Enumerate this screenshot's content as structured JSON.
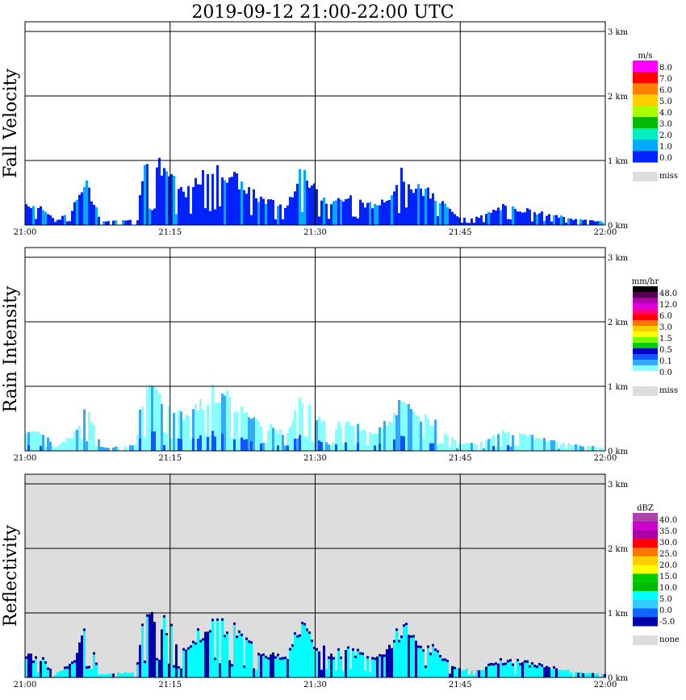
{
  "title": "2019-09-12   21:00-22:00 UTC",
  "chart_data": [
    {
      "type": "heatmap",
      "ylabel": "Fall Velocity",
      "x_ticks": [
        "21:00",
        "21:15",
        "21:30",
        "21:45",
        "22:00"
      ],
      "y_ticks": [
        "0 km",
        "1 km",
        "2 km",
        "3 km"
      ],
      "ylim_km": [
        0,
        3
      ],
      "grid": true,
      "background": "#ffffff",
      "legend": {
        "unit": "m/s",
        "labels": [
          "8.0",
          "7.0",
          "6.0",
          "5.0",
          "4.0",
          "3.0",
          "2.0",
          "1.0",
          "0.0"
        ],
        "colors": [
          "#ff00ff",
          "#ff0000",
          "#ff7f00",
          "#ffcc00",
          "#aaff00",
          "#00bb00",
          "#00eebb",
          "#00aaff",
          "#0022ff"
        ],
        "missing_label": "miss",
        "missing_color": "#dddddd"
      },
      "cloud": {
        "top_km": 1.0,
        "dominant_color": "#0022ff",
        "secondary_color": "#00aaff"
      }
    },
    {
      "type": "heatmap",
      "ylabel": "Rain Intensity",
      "x_ticks": [
        "21:00",
        "21:15",
        "21:30",
        "21:45",
        "22:00"
      ],
      "y_ticks": [
        "0 km",
        "1 km",
        "2 km",
        "3 km"
      ],
      "ylim_km": [
        0,
        3
      ],
      "grid": true,
      "background": "#ffffff",
      "legend": {
        "unit": "mm/hr",
        "labels": [
          "48.0",
          "12.0",
          "6.0",
          "3.0",
          "1.5",
          "0.5",
          "0.1",
          "0.0"
        ],
        "colors": [
          "#000000",
          "#550055",
          "#aa00aa",
          "#dd00dd",
          "#ff0077",
          "#ff0000",
          "#ff7700",
          "#ffcc00",
          "#ffff00",
          "#77ff00",
          "#00cc00",
          "#0000cc",
          "#1155ff",
          "#33aaff",
          "#88ffff",
          "#ffffff"
        ],
        "missing_label": "miss",
        "missing_color": "#dddddd"
      },
      "cloud": {
        "top_km": 1.0,
        "dominant_color": "#88ffff",
        "secondary_color": "#33aaff"
      }
    },
    {
      "type": "heatmap",
      "ylabel": "Reflectivity",
      "x_ticks": [
        "21:00",
        "21:15",
        "21:30",
        "21:45",
        "22:00"
      ],
      "y_ticks": [
        "0 km",
        "1 km",
        "2 km",
        "3 km"
      ],
      "ylim_km": [
        0,
        3
      ],
      "grid": true,
      "background": "#dddddd",
      "legend": {
        "unit": "dBZ",
        "labels": [
          "40.0",
          "35.0",
          "30.0",
          "25.0",
          "20.0",
          "15.0",
          "10.0",
          "5.0",
          "0.0",
          "-5.0"
        ],
        "colors": [
          "#aa44aa",
          "#cc00cc",
          "#aa00aa",
          "#ff0000",
          "#ff7700",
          "#ffcc00",
          "#ffff00",
          "#00cc00",
          "#00bb00",
          "#00ffff",
          "#33ccff",
          "#1166ff",
          "#0000aa"
        ],
        "missing_label": "none",
        "missing_color": "#dddddd"
      },
      "cloud": {
        "top_km": 1.0,
        "dominant_color": "#00ffff",
        "secondary_color": "#0000aa"
      }
    }
  ]
}
